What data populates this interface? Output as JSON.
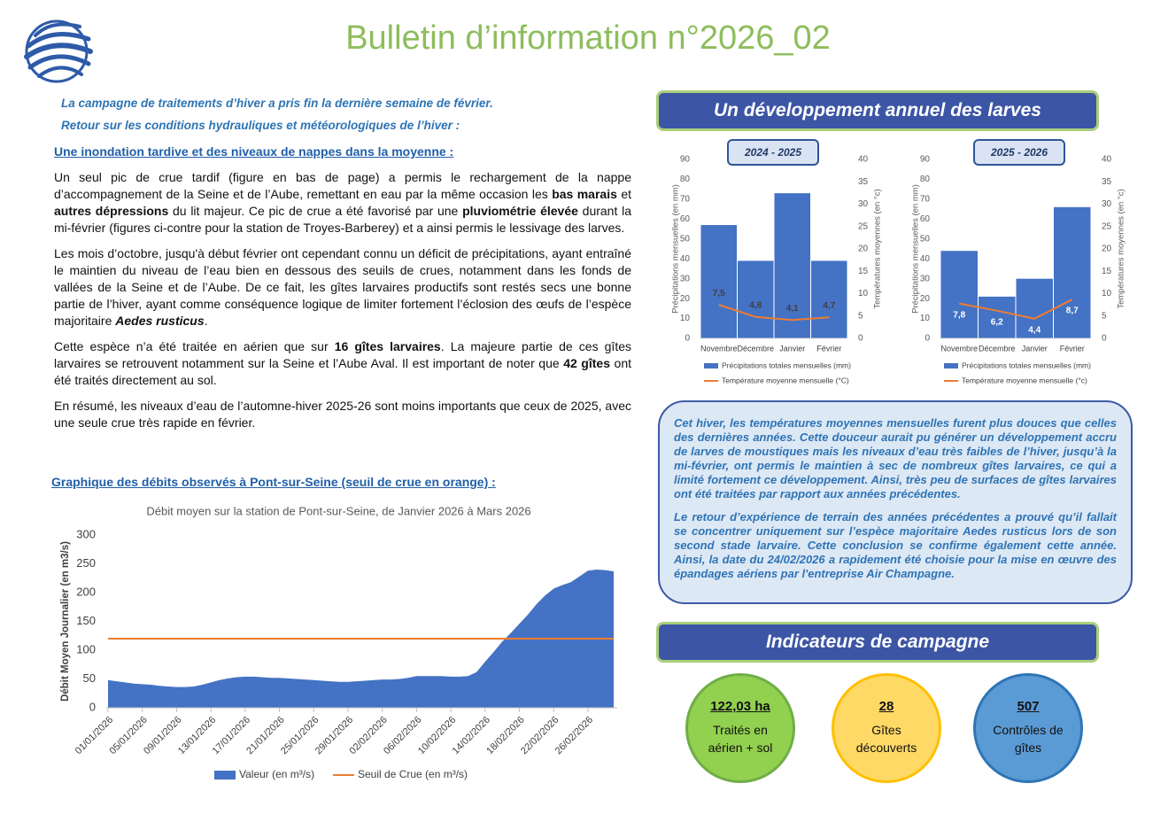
{
  "header": {
    "title": "Bulletin d’information n°2026_02"
  },
  "intro": [
    "La campagne de traitements d’hiver a pris fin la dernière semaine de février.",
    "Retour sur les conditions hydrauliques et météorologiques de l’hiver :"
  ],
  "section1": {
    "heading": "Une inondation tardive et des niveaux de nappes dans la moyenne :",
    "paragraphs": [
      [
        {
          "text": "Un seul pic de crue tardif (figure en bas de page) a permis le rechargement de la nappe d’accompagnement de la Seine et de l’Aube, remettant en eau par la même occasion les "
        },
        {
          "text": "bas marais",
          "style": "bold"
        },
        {
          "text": " et "
        },
        {
          "text": "autres dépressions",
          "style": "bold"
        },
        {
          "text": " du lit majeur. Ce pic de crue a été favorisé par une "
        },
        {
          "text": "pluviométrie élevée",
          "style": "bold"
        },
        {
          "text": " durant la mi-février (figures ci-contre pour la station de Troyes-Barberey) et a ainsi permis le lessivage des larves."
        }
      ],
      [
        {
          "text": "Les mois d’octobre, jusqu'à début février ont cependant connu un déficit de précipitations, ayant entraîné le maintien du niveau de l’eau bien en dessous des seuils de crues, notamment dans les fonds de vallées de la Seine et de l’Aube. De ce fait, les gîtes larvaires productifs sont restés secs une bonne partie de l’hiver, ayant comme conséquence logique de limiter fortement l’éclosion des œufs de l’espèce majoritaire "
        },
        {
          "text": "Aedes rusticus",
          "style": "bold-italic"
        },
        {
          "text": "."
        }
      ],
      [
        {
          "text": "Cette espèce n’a été traitée en aérien que sur "
        },
        {
          "text": "16 gîtes larvaires",
          "style": "bold"
        },
        {
          "text": ". La majeure partie de ces gîtes larvaires se retrouvent notamment sur la Seine et l’Aube Aval. Il est important de noter que "
        },
        {
          "text": "42 gîtes",
          "style": "bold"
        },
        {
          "text": " ont été traités directement au sol."
        }
      ],
      [
        {
          "text": "En résumé, les niveaux d’eau de l’automne-hiver 2025-26 sont moins importants que ceux de 2025, avec une seule crue très rapide en février."
        }
      ]
    ]
  },
  "section2": {
    "heading": "Graphique des débits observés à Pont-sur-Seine (seuil de crue en orange) :"
  },
  "right": {
    "banner": "Un développement annuel des larves",
    "callout": [
      "Cet hiver, les températures moyennes mensuelles furent plus douces que celles des dernières années. Cette douceur aurait pu générer un développement accru de larves de moustiques mais les niveaux d’eau très faibles de l’hiver, jusqu’à la mi-février, ont permis le maintien à sec de nombreux gîtes larvaires, ce qui a limité fortement ce développement. Ainsi, très peu de surfaces de gîtes larvaires ont été traitées par rapport aux années précédentes.",
      "Le retour d’expérience de terrain des années précédentes a prouvé qu’il fallait se concentrer uniquement sur l’espèce majoritaire Aedes rusticus lors de son second stade larvaire. Cette conclusion se confirme également cette année. Ainsi, la date du 24/02/2026 a rapidement été choisie pour la mise en œuvre des épandages aériens par l'entreprise Air Champagne."
    ],
    "indicators_banner": "Indicateurs de campagne",
    "indicators": [
      {
        "value": "122,03 ha",
        "label": "Traités en aérien + sol"
      },
      {
        "value": "28",
        "label": "Gîtes découverts"
      },
      {
        "value": "507",
        "label": "Contrôles de gîtes"
      }
    ]
  },
  "chart_data": [
    {
      "type": "bar",
      "title": "2024 - 2025",
      "categories": [
        "Novembre",
        "Décembre",
        "Janvier",
        "Février"
      ],
      "series": [
        {
          "name": "Précipitations totales mensuelles (mm)",
          "color": "#4472c4",
          "values": [
            57,
            39,
            73,
            39
          ]
        },
        {
          "name": "Température moyenne mensuelle (°C)",
          "color": "#ed7d31",
          "type": "line",
          "axis": "y2",
          "values": [
            7.5,
            4.8,
            4.1,
            4.7
          ],
          "value_labels": [
            "7,5",
            "4,8",
            "4,1",
            "4,7"
          ],
          "label_color": "#404040",
          "label_position": "above"
        }
      ],
      "ylabel": "Précipitations mensuelles (en mm)",
      "y2label": "Températures moyennes (en °c)",
      "ylim": [
        0,
        90
      ],
      "yticks": [
        0,
        10,
        20,
        30,
        40,
        50,
        60,
        70,
        80,
        90
      ],
      "y2lim": [
        0,
        40
      ],
      "y2ticks": [
        0,
        5,
        10,
        15,
        20,
        25,
        30,
        35,
        40
      ]
    },
    {
      "type": "bar",
      "title": "2025 - 2026",
      "categories": [
        "Novembre",
        "Décembre",
        "Janvier",
        "Février"
      ],
      "series": [
        {
          "name": "Précipitations totales mensuelles (mm)",
          "color": "#4472c4",
          "values": [
            44,
            21,
            30,
            66
          ]
        },
        {
          "name": "Température moyenne mensuelle (°c)",
          "color": "#ed7d31",
          "type": "line",
          "axis": "y2",
          "values": [
            7.8,
            6.2,
            4.4,
            8.7
          ],
          "value_labels": [
            "7,8",
            "6,2",
            "4,4",
            "8,7"
          ],
          "label_color": "#ffffff",
          "label_position": "below"
        }
      ],
      "ylabel": "Précipitations mensuelles (en mm)",
      "y2label": "Températures moyennes (en °c)",
      "ylim": [
        0,
        90
      ],
      "yticks": [
        0,
        10,
        20,
        30,
        40,
        50,
        60,
        70,
        80,
        90
      ],
      "y2lim": [
        0,
        40
      ],
      "y2ticks": [
        0,
        5,
        10,
        15,
        20,
        25,
        30,
        35,
        40
      ]
    },
    {
      "type": "area",
      "title": "Débit moyen sur la station de Pont-sur-Seine, de Janvier 2026 à Mars 2026",
      "ylabel": "Débit Moyen Journalier (en m3/s)",
      "categories": [
        "01/01/2026",
        null,
        null,
        null,
        "05/01/2026",
        null,
        null,
        null,
        "09/01/2026",
        null,
        null,
        null,
        "13/01/2026",
        null,
        null,
        null,
        "17/01/2026",
        null,
        null,
        null,
        "21/01/2026",
        null,
        null,
        null,
        "25/01/2026",
        null,
        null,
        null,
        "29/01/2026",
        null,
        null,
        null,
        "02/02/2026",
        null,
        null,
        null,
        "06/02/2026",
        null,
        null,
        null,
        "10/02/2026",
        null,
        null,
        null,
        "14/02/2026",
        null,
        null,
        null,
        "18/02/2026",
        null,
        null,
        null,
        "22/02/2026",
        null,
        null,
        null,
        "26/02/2026",
        null,
        null,
        null
      ],
      "series": [
        {
          "name": "Valeur (en m³/s)",
          "color": "#4472c4",
          "values": [
            48,
            46,
            44,
            42,
            41,
            40,
            38,
            37,
            36,
            36,
            37,
            40,
            44,
            48,
            51,
            53,
            54,
            54,
            53,
            52,
            52,
            51,
            50,
            49,
            48,
            47,
            46,
            45,
            45,
            46,
            47,
            48,
            49,
            49,
            50,
            52,
            55,
            55,
            55,
            55,
            54,
            54,
            55,
            62,
            80,
            97,
            115,
            130,
            146,
            162,
            180,
            195,
            207,
            213,
            218,
            228,
            238,
            240,
            239,
            237
          ]
        },
        {
          "name": "Seuil de Crue (en m³/s)",
          "color": "#ed7d31",
          "type": "line",
          "values": [
            120,
            120,
            120,
            120,
            120,
            120,
            120,
            120,
            120,
            120,
            120,
            120,
            120,
            120,
            120,
            120,
            120,
            120,
            120,
            120,
            120,
            120,
            120,
            120,
            120,
            120,
            120,
            120,
            120,
            120,
            120,
            120,
            120,
            120,
            120,
            120,
            120,
            120,
            120,
            120,
            120,
            120,
            120,
            120,
            120,
            120,
            120,
            120,
            120,
            120,
            120,
            120,
            120,
            120,
            120,
            120,
            120,
            120,
            120,
            120
          ]
        }
      ],
      "ylim": [
        0,
        300
      ],
      "yticks": [
        0,
        50,
        100,
        150,
        200,
        250,
        300
      ]
    }
  ]
}
